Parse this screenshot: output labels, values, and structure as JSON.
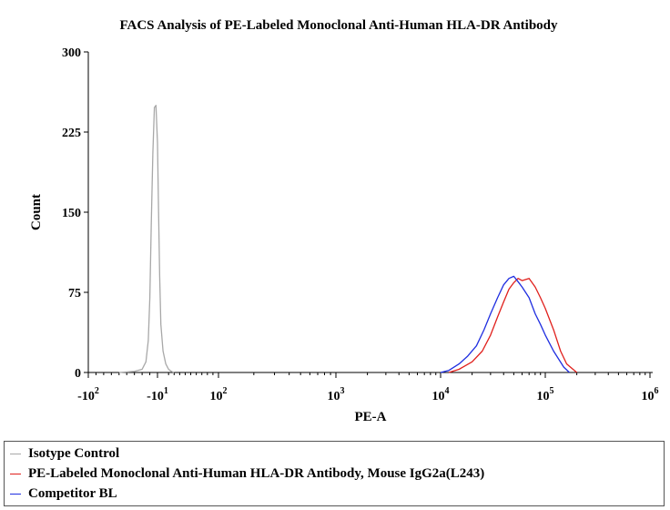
{
  "chart_data": {
    "type": "line",
    "title": "FACS Analysis of PE-Labeled Monoclonal Anti-Human HLA-DR Antibody",
    "xlabel": "PE-A",
    "ylabel": "Count",
    "xscale": "biexponential",
    "ylim": [
      0,
      300
    ],
    "y_ticks": [
      0,
      75,
      150,
      225,
      300
    ],
    "x_ticks": [
      {
        "value": -100,
        "label": "-10",
        "exp": "2"
      },
      {
        "value": -10,
        "label": "-10",
        "exp": "1"
      },
      {
        "value": 100,
        "label": "10",
        "exp": "2"
      },
      {
        "value": 1000,
        "label": "10",
        "exp": "3"
      },
      {
        "value": 10000,
        "label": "10",
        "exp": "4"
      },
      {
        "value": 100000,
        "label": "10",
        "exp": "5"
      },
      {
        "value": 1000000,
        "label": "10",
        "exp": "6"
      }
    ],
    "legend_position": "bottom",
    "series": [
      {
        "name": "Isotype Control",
        "color": "#a8a8a8",
        "x": [
          -60,
          -40,
          -30,
          -25,
          -22,
          -20,
          -18,
          -16,
          -14,
          -12,
          -10,
          -8,
          -6,
          -4,
          0,
          5,
          10,
          15,
          20
        ],
        "y": [
          0,
          1,
          3,
          10,
          30,
          70,
          140,
          205,
          248,
          250,
          215,
          150,
          90,
          45,
          20,
          8,
          3,
          1,
          0
        ]
      },
      {
        "name": "PE-Labeled Monoclonal Anti-Human HLA-DR Antibody, Mouse IgG2a(L243)",
        "color": "#e0201c",
        "x": [
          12000,
          15000,
          20000,
          25000,
          30000,
          35000,
          40000,
          45000,
          50000,
          55000,
          60000,
          70000,
          80000,
          90000,
          100000,
          120000,
          140000,
          160000,
          200000
        ],
        "y": [
          0,
          3,
          10,
          20,
          35,
          52,
          66,
          78,
          84,
          88,
          86,
          88,
          80,
          70,
          60,
          40,
          20,
          8,
          0
        ]
      },
      {
        "name": "Competitor BL",
        "color": "#1f2ee0",
        "x": [
          10000,
          12000,
          15000,
          18000,
          22000,
          26000,
          30000,
          35000,
          40000,
          45000,
          50000,
          55000,
          60000,
          70000,
          80000,
          90000,
          100000,
          120000,
          150000,
          170000
        ],
        "y": [
          0,
          2,
          8,
          15,
          25,
          40,
          55,
          70,
          82,
          88,
          90,
          85,
          80,
          70,
          55,
          45,
          35,
          20,
          5,
          0
        ]
      }
    ]
  }
}
